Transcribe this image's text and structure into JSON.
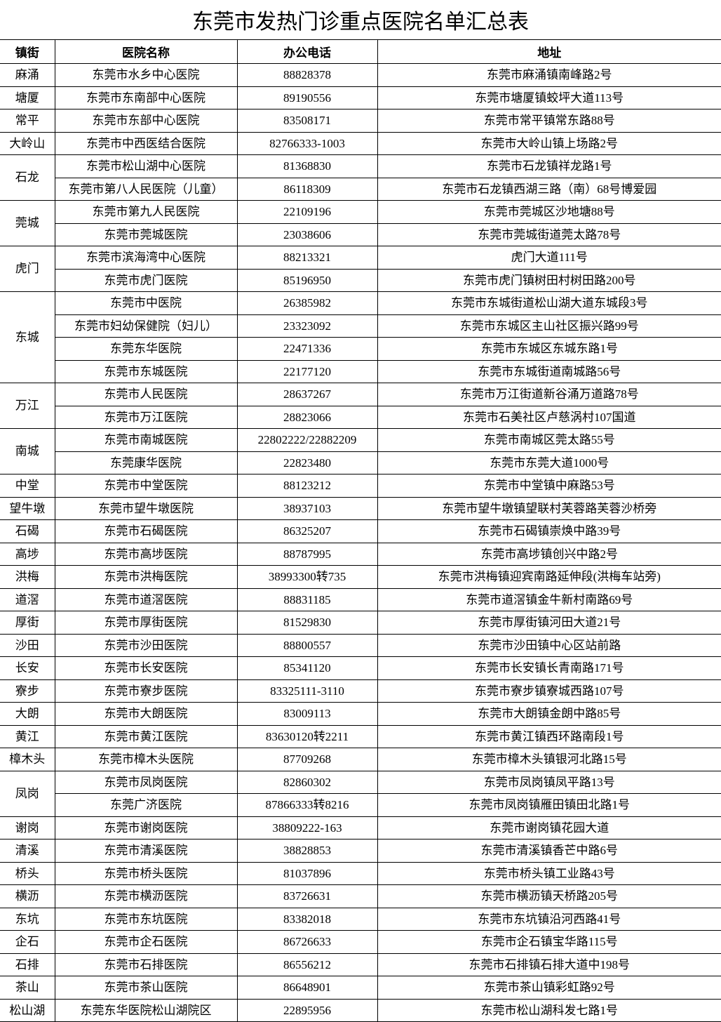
{
  "title": "东莞市发热门诊重点医院名单汇总表",
  "columns": [
    "镇街",
    "医院名称",
    "办公电话",
    "地址"
  ],
  "groups": [
    {
      "town": "麻涌",
      "rows": [
        [
          "东莞市水乡中心医院",
          "88828378",
          "东莞市麻涌镇南峰路2号"
        ]
      ]
    },
    {
      "town": "塘厦",
      "rows": [
        [
          "东莞市东南部中心医院",
          "89190556",
          "东莞市塘厦镇蛟坪大道113号"
        ]
      ]
    },
    {
      "town": "常平",
      "rows": [
        [
          "东莞市东部中心医院",
          "83508171",
          "东莞市常平镇常东路88号"
        ]
      ]
    },
    {
      "town": "大岭山",
      "rows": [
        [
          "东莞市中西医结合医院",
          "82766333-1003",
          "东莞市大岭山镇上场路2号"
        ]
      ]
    },
    {
      "town": "石龙",
      "rows": [
        [
          "东莞市松山湖中心医院",
          "81368830",
          "东莞市石龙镇祥龙路1号"
        ],
        [
          "东莞市第八人民医院（儿童）",
          "86118309",
          "东莞市石龙镇西湖三路（南）68号博爱园"
        ]
      ]
    },
    {
      "town": "莞城",
      "rows": [
        [
          "东莞市第九人民医院",
          "22109196",
          "东莞市莞城区沙地塘88号"
        ],
        [
          "东莞市莞城医院",
          "23038606",
          "东莞市莞城街道莞太路78号"
        ]
      ]
    },
    {
      "town": "虎门",
      "rows": [
        [
          "东莞市滨海湾中心医院",
          "88213321",
          "虎门大道111号"
        ],
        [
          "东莞市虎门医院",
          "85196950",
          "东莞市虎门镇树田村树田路200号"
        ]
      ]
    },
    {
      "town": "东城",
      "rows": [
        [
          "东莞市中医院",
          "26385982",
          "东莞市东城街道松山湖大道东城段3号"
        ],
        [
          "东莞市妇幼保健院（妇儿）",
          "23323092",
          "东莞市东城区主山社区振兴路99号"
        ],
        [
          "东莞东华医院",
          "22471336",
          "东莞市东城区东城东路1号"
        ],
        [
          "东莞市东城医院",
          "22177120",
          "东莞市东城街道南城路56号"
        ]
      ]
    },
    {
      "town": "万江",
      "rows": [
        [
          "东莞市人民医院",
          "28637267",
          "东莞市万江街道新谷涌万道路78号"
        ],
        [
          "东莞市万江医院",
          "28823066",
          "东莞市石美社区卢慈涡村107国道"
        ]
      ]
    },
    {
      "town": "南城",
      "rows": [
        [
          "东莞市南城医院",
          "22802222/22882209",
          "东莞市南城区莞太路55号"
        ],
        [
          "东莞康华医院",
          "22823480",
          "东莞市东莞大道1000号"
        ]
      ]
    },
    {
      "town": "中堂",
      "rows": [
        [
          "东莞市中堂医院",
          "88123212",
          "东莞市中堂镇中麻路53号"
        ]
      ]
    },
    {
      "town": "望牛墩",
      "rows": [
        [
          "东莞市望牛墩医院",
          "38937103",
          "东莞市望牛墩镇望联村芙蓉路芙蓉沙桥旁"
        ]
      ]
    },
    {
      "town": "石碣",
      "rows": [
        [
          "东莞市石碣医院",
          "86325207",
          "东莞市石碣镇崇焕中路39号"
        ]
      ]
    },
    {
      "town": "高埗",
      "rows": [
        [
          "东莞市高埗医院",
          "88787995",
          "东莞市高埗镇创兴中路2号"
        ]
      ]
    },
    {
      "town": "洪梅",
      "rows": [
        [
          "东莞市洪梅医院",
          "38993300转735",
          "东莞市洪梅镇迎宾南路延伸段(洪梅车站旁)"
        ]
      ]
    },
    {
      "town": "道滘",
      "rows": [
        [
          "东莞市道滘医院",
          "88831185",
          "东莞市道滘镇金牛新村南路69号"
        ]
      ]
    },
    {
      "town": "厚街",
      "rows": [
        [
          "东莞市厚街医院",
          "81529830",
          "东莞市厚街镇河田大道21号"
        ]
      ]
    },
    {
      "town": "沙田",
      "rows": [
        [
          "东莞市沙田医院",
          "88800557",
          "东莞市沙田镇中心区站前路"
        ]
      ]
    },
    {
      "town": "长安",
      "rows": [
        [
          "东莞市长安医院",
          "85341120",
          "东莞市长安镇长青南路171号"
        ]
      ]
    },
    {
      "town": "寮步",
      "rows": [
        [
          "东莞市寮步医院",
          "83325111-3110",
          "东莞市寮步镇寮城西路107号"
        ]
      ]
    },
    {
      "town": "大朗",
      "rows": [
        [
          "东莞市大朗医院",
          "83009113",
          "东莞市大朗镇金朗中路85号"
        ]
      ]
    },
    {
      "town": "黄江",
      "rows": [
        [
          "东莞市黄江医院",
          "83630120转2211",
          "东莞市黄江镇西环路南段1号"
        ]
      ]
    },
    {
      "town": "樟木头",
      "rows": [
        [
          "东莞市樟木头医院",
          "87709268",
          "东莞市樟木头镇银河北路15号"
        ]
      ]
    },
    {
      "town": "凤岗",
      "rows": [
        [
          "东莞市凤岗医院",
          "82860302",
          "东莞市凤岗镇凤平路13号"
        ],
        [
          "东莞广济医院",
          "87866333转8216",
          "东莞市凤岗镇雁田镇田北路1号"
        ]
      ]
    },
    {
      "town": "谢岗",
      "rows": [
        [
          "东莞市谢岗医院",
          "38809222-163",
          "东莞市谢岗镇花园大道"
        ]
      ]
    },
    {
      "town": "清溪",
      "rows": [
        [
          "东莞市清溪医院",
          "38828853",
          "东莞市清溪镇香芒中路6号"
        ]
      ]
    },
    {
      "town": "桥头",
      "rows": [
        [
          "东莞市桥头医院",
          "81037896",
          "东莞市桥头镇工业路43号"
        ]
      ]
    },
    {
      "town": "横沥",
      "rows": [
        [
          "东莞市横沥医院",
          "83726631",
          "东莞市横沥镇天桥路205号"
        ]
      ]
    },
    {
      "town": "东坑",
      "rows": [
        [
          "东莞市东坑医院",
          "83382018",
          "东莞市东坑镇沿河西路41号"
        ]
      ]
    },
    {
      "town": "企石",
      "rows": [
        [
          "东莞市企石医院",
          "86726633",
          "东莞市企石镇宝华路115号"
        ]
      ]
    },
    {
      "town": "石排",
      "rows": [
        [
          "东莞市石排医院",
          "86556212",
          "东莞市石排镇石排大道中198号"
        ]
      ]
    },
    {
      "town": "茶山",
      "rows": [
        [
          "东莞市茶山医院",
          "86648901",
          "东莞市茶山镇彩虹路92号"
        ]
      ]
    },
    {
      "town": "松山湖",
      "rows": [
        [
          "东莞东华医院松山湖院区",
          "22895956",
          "东莞市松山湖科发七路1号"
        ]
      ]
    }
  ]
}
